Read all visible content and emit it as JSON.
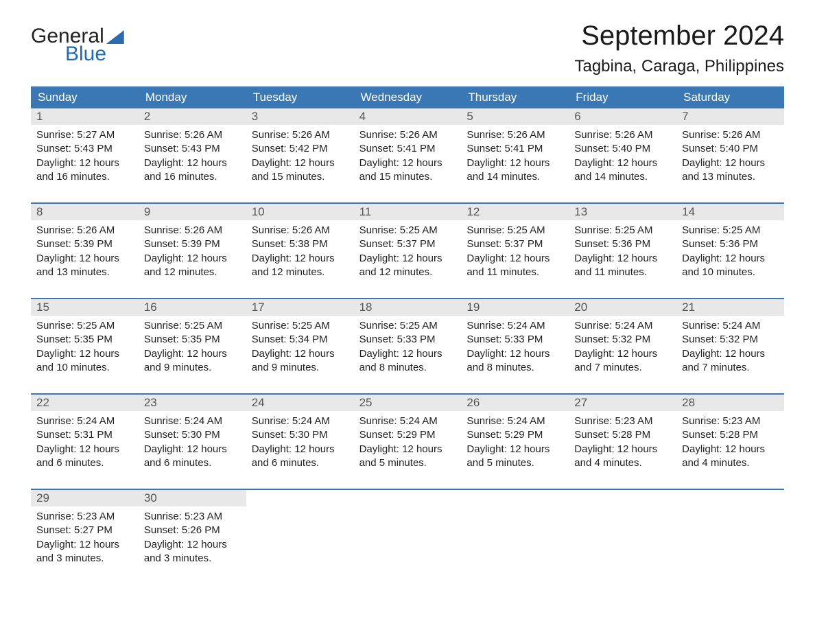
{
  "logo": {
    "line1": "General",
    "line2": "Blue"
  },
  "title": "September 2024",
  "location": "Tagbina, Caraga, Philippines",
  "colors": {
    "header_bg": "#3a78b5",
    "header_text": "#ffffff",
    "daynum_bg": "#e8e8e8",
    "daynum_text": "#555555",
    "body_text": "#222222",
    "week_border": "#3a78b5",
    "logo_blue": "#1e6bb8",
    "page_bg": "#ffffff"
  },
  "typography": {
    "title_fontsize": 40,
    "location_fontsize": 24,
    "weekday_fontsize": 17,
    "daynum_fontsize": 17,
    "body_fontsize": 15,
    "font_family": "Arial"
  },
  "layout": {
    "columns": 7,
    "rows": 5
  },
  "weekdays": [
    "Sunday",
    "Monday",
    "Tuesday",
    "Wednesday",
    "Thursday",
    "Friday",
    "Saturday"
  ],
  "labels": {
    "sunrise": "Sunrise:",
    "sunset": "Sunset:",
    "daylight": "Daylight:"
  },
  "days": [
    {
      "n": 1,
      "sunrise": "5:27 AM",
      "sunset": "5:43 PM",
      "daylight1": "12 hours",
      "daylight2": "and 16 minutes."
    },
    {
      "n": 2,
      "sunrise": "5:26 AM",
      "sunset": "5:43 PM",
      "daylight1": "12 hours",
      "daylight2": "and 16 minutes."
    },
    {
      "n": 3,
      "sunrise": "5:26 AM",
      "sunset": "5:42 PM",
      "daylight1": "12 hours",
      "daylight2": "and 15 minutes."
    },
    {
      "n": 4,
      "sunrise": "5:26 AM",
      "sunset": "5:41 PM",
      "daylight1": "12 hours",
      "daylight2": "and 15 minutes."
    },
    {
      "n": 5,
      "sunrise": "5:26 AM",
      "sunset": "5:41 PM",
      "daylight1": "12 hours",
      "daylight2": "and 14 minutes."
    },
    {
      "n": 6,
      "sunrise": "5:26 AM",
      "sunset": "5:40 PM",
      "daylight1": "12 hours",
      "daylight2": "and 14 minutes."
    },
    {
      "n": 7,
      "sunrise": "5:26 AM",
      "sunset": "5:40 PM",
      "daylight1": "12 hours",
      "daylight2": "and 13 minutes."
    },
    {
      "n": 8,
      "sunrise": "5:26 AM",
      "sunset": "5:39 PM",
      "daylight1": "12 hours",
      "daylight2": "and 13 minutes."
    },
    {
      "n": 9,
      "sunrise": "5:26 AM",
      "sunset": "5:39 PM",
      "daylight1": "12 hours",
      "daylight2": "and 12 minutes."
    },
    {
      "n": 10,
      "sunrise": "5:26 AM",
      "sunset": "5:38 PM",
      "daylight1": "12 hours",
      "daylight2": "and 12 minutes."
    },
    {
      "n": 11,
      "sunrise": "5:25 AM",
      "sunset": "5:37 PM",
      "daylight1": "12 hours",
      "daylight2": "and 12 minutes."
    },
    {
      "n": 12,
      "sunrise": "5:25 AM",
      "sunset": "5:37 PM",
      "daylight1": "12 hours",
      "daylight2": "and 11 minutes."
    },
    {
      "n": 13,
      "sunrise": "5:25 AM",
      "sunset": "5:36 PM",
      "daylight1": "12 hours",
      "daylight2": "and 11 minutes."
    },
    {
      "n": 14,
      "sunrise": "5:25 AM",
      "sunset": "5:36 PM",
      "daylight1": "12 hours",
      "daylight2": "and 10 minutes."
    },
    {
      "n": 15,
      "sunrise": "5:25 AM",
      "sunset": "5:35 PM",
      "daylight1": "12 hours",
      "daylight2": "and 10 minutes."
    },
    {
      "n": 16,
      "sunrise": "5:25 AM",
      "sunset": "5:35 PM",
      "daylight1": "12 hours",
      "daylight2": "and 9 minutes."
    },
    {
      "n": 17,
      "sunrise": "5:25 AM",
      "sunset": "5:34 PM",
      "daylight1": "12 hours",
      "daylight2": "and 9 minutes."
    },
    {
      "n": 18,
      "sunrise": "5:25 AM",
      "sunset": "5:33 PM",
      "daylight1": "12 hours",
      "daylight2": "and 8 minutes."
    },
    {
      "n": 19,
      "sunrise": "5:24 AM",
      "sunset": "5:33 PM",
      "daylight1": "12 hours",
      "daylight2": "and 8 minutes."
    },
    {
      "n": 20,
      "sunrise": "5:24 AM",
      "sunset": "5:32 PM",
      "daylight1": "12 hours",
      "daylight2": "and 7 minutes."
    },
    {
      "n": 21,
      "sunrise": "5:24 AM",
      "sunset": "5:32 PM",
      "daylight1": "12 hours",
      "daylight2": "and 7 minutes."
    },
    {
      "n": 22,
      "sunrise": "5:24 AM",
      "sunset": "5:31 PM",
      "daylight1": "12 hours",
      "daylight2": "and 6 minutes."
    },
    {
      "n": 23,
      "sunrise": "5:24 AM",
      "sunset": "5:30 PM",
      "daylight1": "12 hours",
      "daylight2": "and 6 minutes."
    },
    {
      "n": 24,
      "sunrise": "5:24 AM",
      "sunset": "5:30 PM",
      "daylight1": "12 hours",
      "daylight2": "and 6 minutes."
    },
    {
      "n": 25,
      "sunrise": "5:24 AM",
      "sunset": "5:29 PM",
      "daylight1": "12 hours",
      "daylight2": "and 5 minutes."
    },
    {
      "n": 26,
      "sunrise": "5:24 AM",
      "sunset": "5:29 PM",
      "daylight1": "12 hours",
      "daylight2": "and 5 minutes."
    },
    {
      "n": 27,
      "sunrise": "5:23 AM",
      "sunset": "5:28 PM",
      "daylight1": "12 hours",
      "daylight2": "and 4 minutes."
    },
    {
      "n": 28,
      "sunrise": "5:23 AM",
      "sunset": "5:28 PM",
      "daylight1": "12 hours",
      "daylight2": "and 4 minutes."
    },
    {
      "n": 29,
      "sunrise": "5:23 AM",
      "sunset": "5:27 PM",
      "daylight1": "12 hours",
      "daylight2": "and 3 minutes."
    },
    {
      "n": 30,
      "sunrise": "5:23 AM",
      "sunset": "5:26 PM",
      "daylight1": "12 hours",
      "daylight2": "and 3 minutes."
    }
  ]
}
